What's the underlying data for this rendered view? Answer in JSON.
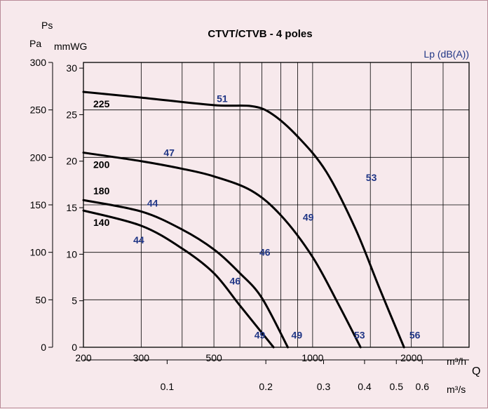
{
  "chart_data": {
    "type": "line",
    "title": "CTVT/CTVB - 4 poles",
    "xlabel": "Q",
    "y_unit_top": "Ps",
    "y_left_unit": "Pa",
    "y_right_unit": "mmWG",
    "lp_label": "Lp (dB(A))",
    "x_unit_m3h": "m³/h",
    "x_unit_m3s": "m³/s",
    "x_scale": "log",
    "xlim": [
      200,
      3000
    ],
    "ylim": [
      0,
      300
    ],
    "grid": true,
    "x_ticks_m3h": [
      {
        "value": 200,
        "label": "200"
      },
      {
        "value": 300,
        "label": "300"
      },
      {
        "value": 500,
        "label": "500"
      },
      {
        "value": 1000,
        "label": "1000"
      },
      {
        "value": 2000,
        "label": "2000"
      }
    ],
    "x_minor_m3h": [
      400,
      600,
      700,
      800,
      900,
      1500,
      2500,
      3000
    ],
    "x_ticks_m3s": [
      {
        "value": 360,
        "label": "0.1"
      },
      {
        "value": 720,
        "label": "0.2"
      },
      {
        "value": 1080,
        "label": "0.3"
      },
      {
        "value": 1440,
        "label": "0.4"
      },
      {
        "value": 1800,
        "label": "0.5"
      },
      {
        "value": 2160,
        "label": "0.6"
      }
    ],
    "y_ticks_pa": [
      {
        "value": 0,
        "label": "0"
      },
      {
        "value": 50,
        "label": "50"
      },
      {
        "value": 100,
        "label": "100"
      },
      {
        "value": 150,
        "label": "150"
      },
      {
        "value": 200,
        "label": "200"
      },
      {
        "value": 250,
        "label": "250"
      },
      {
        "value": 300,
        "label": "300"
      }
    ],
    "y_ticks_mmwg": [
      {
        "value": 0,
        "label": "0"
      },
      {
        "value": 49,
        "label": "5"
      },
      {
        "value": 98,
        "label": "10"
      },
      {
        "value": 147,
        "label": "15"
      },
      {
        "value": 196,
        "label": "20"
      },
      {
        "value": 245,
        "label": "25"
      },
      {
        "value": 294,
        "label": "30"
      }
    ],
    "series": [
      {
        "name": "225",
        "x": [
          200,
          300,
          500,
          650,
          750,
          900,
          1100,
          1350,
          1600,
          1900
        ],
        "y": [
          269,
          263,
          255,
          254,
          246,
          222,
          185,
          125,
          62,
          0
        ]
      },
      {
        "name": "200",
        "x": [
          200,
          300,
          400,
          500,
          650,
          800,
          1000,
          1200,
          1400
        ],
        "y": [
          205,
          196,
          188,
          180,
          165,
          139,
          95,
          45,
          0
        ]
      },
      {
        "name": "180",
        "x": [
          200,
          300,
          400,
          500,
          600,
          700,
          840
        ],
        "y": [
          155,
          143,
          124,
          103,
          78,
          52,
          0
        ]
      },
      {
        "name": "140",
        "x": [
          200,
          300,
          400,
          500,
          600,
          760
        ],
        "y": [
          144,
          128,
          104,
          78,
          44,
          0
        ]
      }
    ],
    "lp_annotations": [
      {
        "text": "51",
        "x": 530,
        "y": 262
      },
      {
        "text": "53",
        "x": 1510,
        "y": 179
      },
      {
        "text": "56",
        "x": 2050,
        "y": 13
      },
      {
        "text": "47",
        "x": 365,
        "y": 205
      },
      {
        "text": "49",
        "x": 970,
        "y": 137
      },
      {
        "text": "53",
        "x": 1390,
        "y": 13
      },
      {
        "text": "44",
        "x": 325,
        "y": 152
      },
      {
        "text": "46",
        "x": 715,
        "y": 100
      },
      {
        "text": "49",
        "x": 895,
        "y": 13
      },
      {
        "text": "44",
        "x": 295,
        "y": 113
      },
      {
        "text": "46",
        "x": 580,
        "y": 70
      },
      {
        "text": "49",
        "x": 690,
        "y": 13
      }
    ]
  }
}
